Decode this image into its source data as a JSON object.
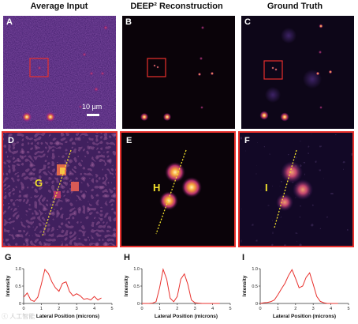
{
  "titles": [
    "Average Input",
    "DEEP² Reconstruction",
    "Ground Truth"
  ],
  "panel_labels": [
    "A",
    "B",
    "C",
    "D",
    "E",
    "F"
  ],
  "zoom_labels": [
    "G",
    "H",
    "I"
  ],
  "scale_bar_label": "10 µm",
  "graph_letters": [
    "G",
    "H",
    "I"
  ],
  "watermark": "ⓒ 人工智能",
  "colors": {
    "panel_bg": "#0a0309",
    "input_bg": "#3b1a66",
    "zoom_border": "#e8302c",
    "roi_box": "#e8302c",
    "profile_line": "#e8302c",
    "dotted_line": "#f3e12b"
  },
  "chart_data": [
    {
      "type": "line",
      "title": "",
      "xlabel": "Lateral Position (microns)",
      "ylabel": "Intensity",
      "xlim": [
        0,
        5
      ],
      "ylim": [
        0,
        1.0
      ],
      "xticks": [
        0,
        1,
        2,
        3,
        4,
        5
      ],
      "yticks": [
        0,
        0.5,
        1.0
      ],
      "tick_labels_x": [
        "0",
        "1",
        "2",
        "3",
        "4",
        "5"
      ],
      "tick_labels_y": [
        "0",
        "0.5",
        "1.0"
      ],
      "x": [
        0,
        0.2,
        0.4,
        0.6,
        0.8,
        1.0,
        1.2,
        1.4,
        1.6,
        1.8,
        2.0,
        2.2,
        2.4,
        2.6,
        2.8,
        3.0,
        3.2,
        3.4,
        3.6,
        3.8,
        4.0,
        4.2,
        4.4
      ],
      "y": [
        0.18,
        0.3,
        0.1,
        0.06,
        0.18,
        0.55,
        0.98,
        0.86,
        0.62,
        0.45,
        0.35,
        0.58,
        0.62,
        0.34,
        0.22,
        0.28,
        0.22,
        0.12,
        0.14,
        0.1,
        0.2,
        0.1,
        0.16
      ]
    },
    {
      "type": "line",
      "title": "",
      "xlabel": "Lateral Position (microns)",
      "ylabel": "Intensity",
      "xlim": [
        0,
        5
      ],
      "ylim": [
        0,
        1.0
      ],
      "xticks": [
        0,
        1,
        2,
        3,
        4,
        5
      ],
      "yticks": [
        0,
        0.5,
        1.0
      ],
      "tick_labels_x": [
        "0",
        "1",
        "2",
        "3",
        "4",
        "5"
      ],
      "tick_labels_y": [
        "0",
        "0.5",
        "1.0"
      ],
      "x": [
        0,
        0.2,
        0.4,
        0.6,
        0.8,
        1.0,
        1.2,
        1.4,
        1.6,
        1.8,
        2.0,
        2.2,
        2.4,
        2.6,
        2.8,
        3.0,
        3.2,
        3.4,
        3.6,
        3.8,
        4.0,
        4.2,
        4.4
      ],
      "y": [
        0,
        0,
        0,
        0.01,
        0.05,
        0.45,
        0.98,
        0.7,
        0.15,
        0.05,
        0.2,
        0.7,
        0.85,
        0.55,
        0.1,
        0.02,
        0.01,
        0,
        0,
        0,
        0,
        0,
        0
      ]
    },
    {
      "type": "line",
      "title": "",
      "xlabel": "Lateral Position (microns)",
      "ylabel": "Intensity",
      "xlim": [
        0,
        5
      ],
      "ylim": [
        0,
        1.0
      ],
      "xticks": [
        0,
        1,
        2,
        3,
        4,
        5
      ],
      "yticks": [
        0,
        0.5,
        1.0
      ],
      "tick_labels_x": [
        "0",
        "1",
        "2",
        "3",
        "4",
        "5"
      ],
      "tick_labels_y": [
        "0",
        "0.5",
        "1.0"
      ],
      "x": [
        0,
        0.2,
        0.4,
        0.6,
        0.8,
        1.0,
        1.2,
        1.4,
        1.6,
        1.8,
        2.0,
        2.2,
        2.4,
        2.6,
        2.8,
        3.0,
        3.2,
        3.4,
        3.6,
        3.8,
        4.0,
        4.2,
        4.4
      ],
      "y": [
        0,
        0.02,
        0.03,
        0.05,
        0.1,
        0.25,
        0.42,
        0.58,
        0.8,
        0.97,
        0.72,
        0.45,
        0.5,
        0.75,
        0.88,
        0.55,
        0.2,
        0.06,
        0.02,
        0,
        0,
        0,
        0
      ]
    }
  ]
}
